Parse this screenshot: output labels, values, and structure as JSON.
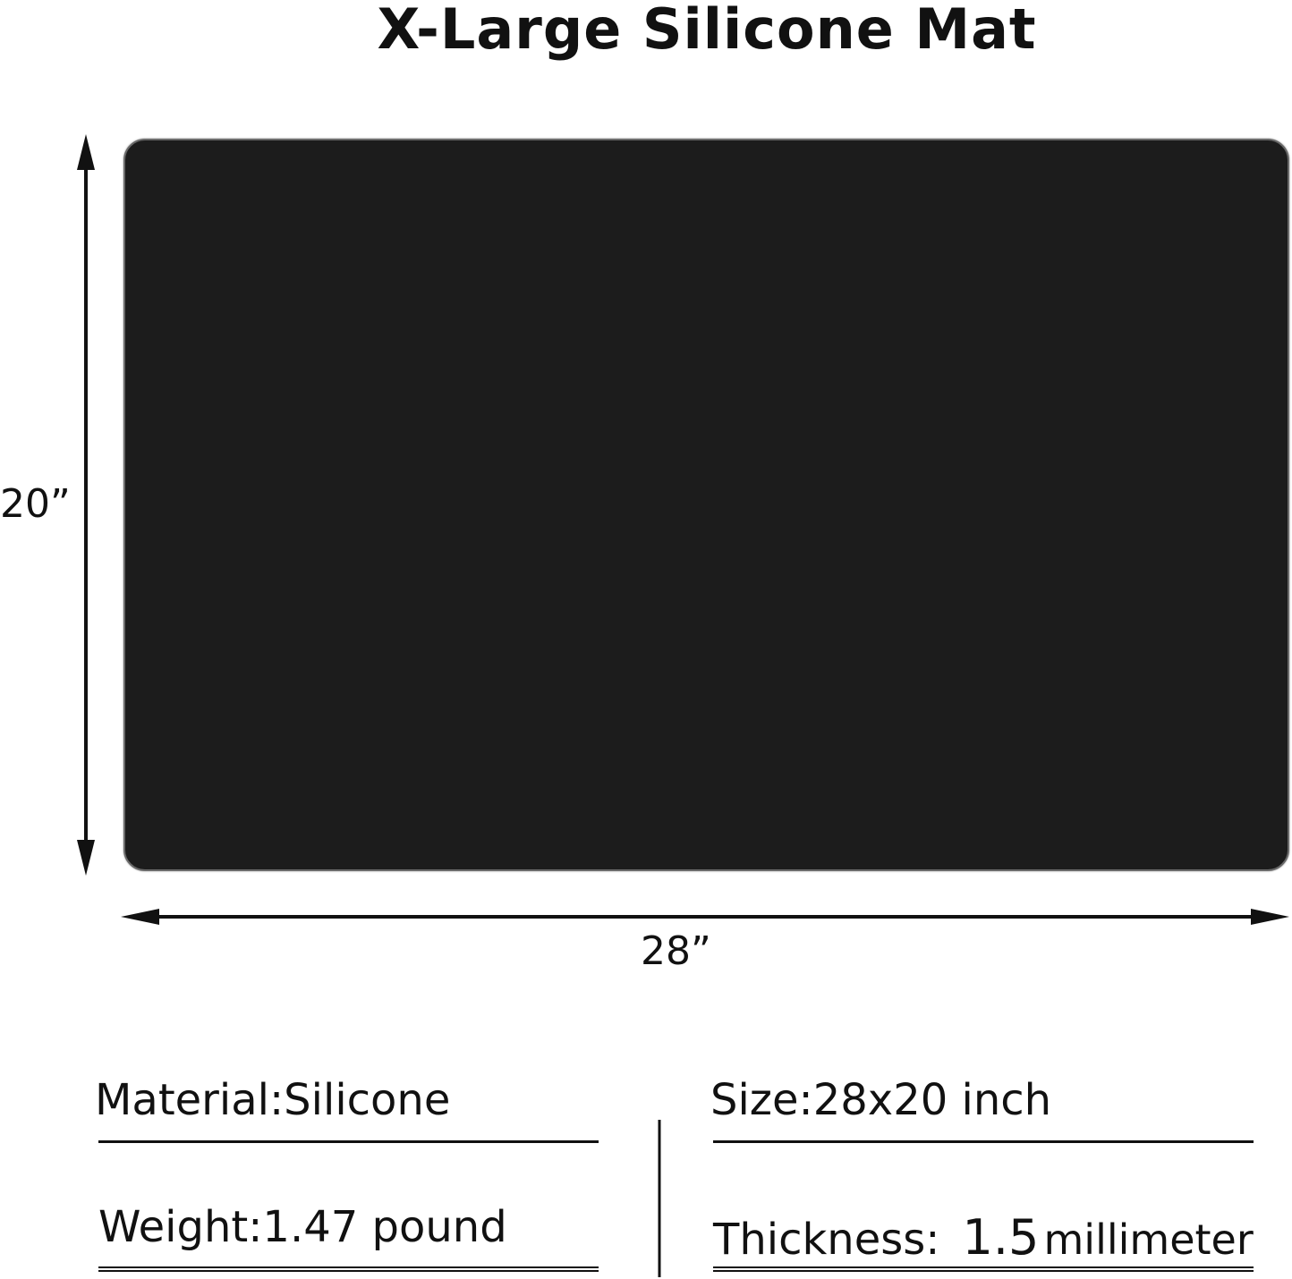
{
  "title": "X-Large Silicone Mat",
  "mat_color": "#1c1c1c",
  "dimensions": {
    "height_label": "20”",
    "width_label": "28”"
  },
  "specs": {
    "material": "Material:Silicone",
    "size": "Size:28x20 inch",
    "weight": "Weight:1.47 pound",
    "thickness_label": "Thickness:",
    "thickness_value": "1.5",
    "thickness_unit": "millimeter"
  }
}
